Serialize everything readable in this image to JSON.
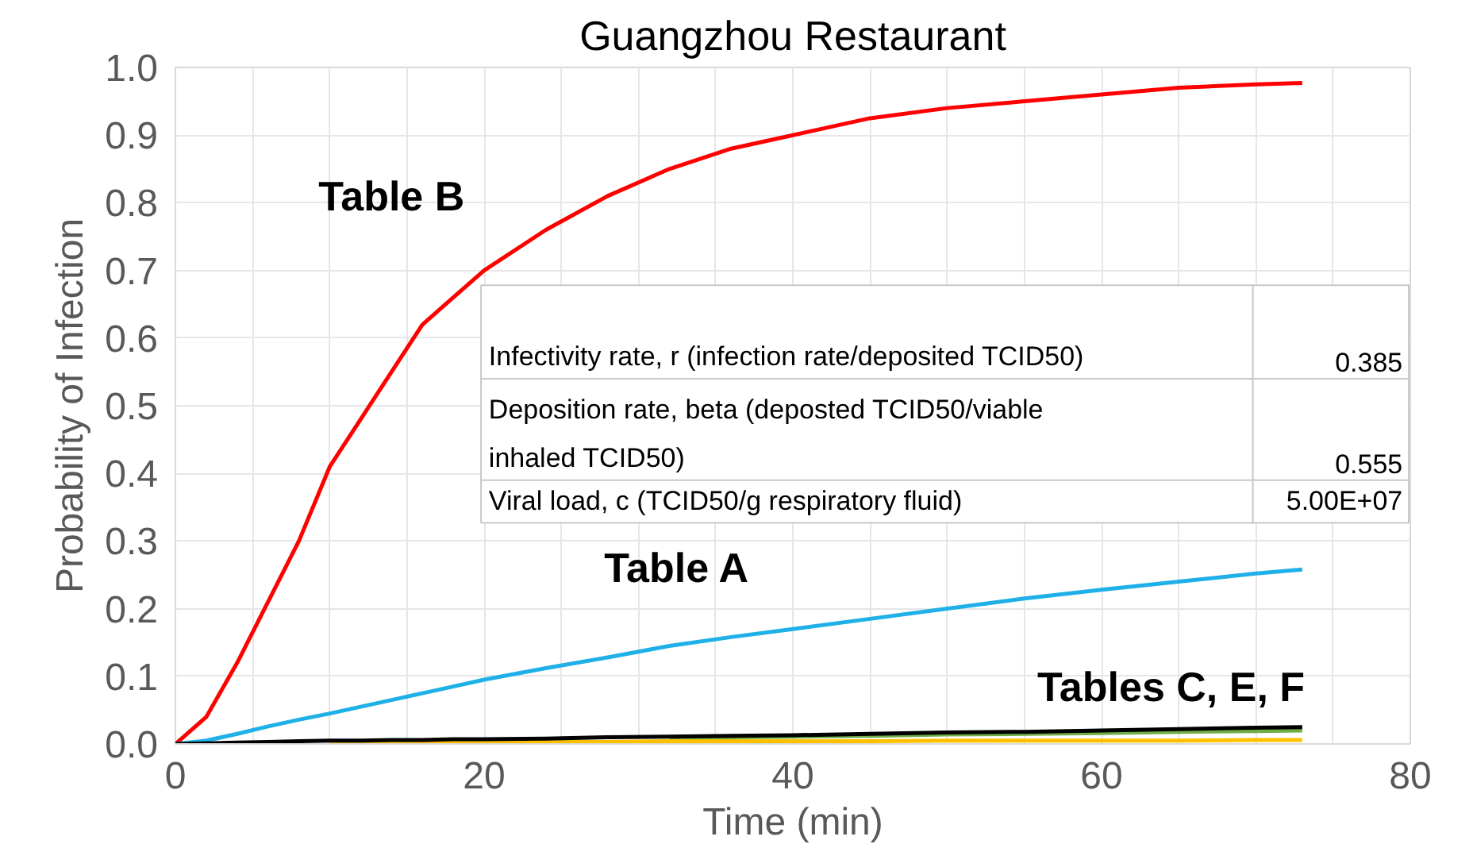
{
  "chart_data": {
    "type": "line",
    "title": "Guangzhou Restaurant",
    "xlabel": "Time (min)",
    "ylabel": "Probability of Infection",
    "x": [
      0,
      2,
      4,
      6,
      8,
      10,
      12,
      14,
      16,
      18,
      20,
      24,
      28,
      32,
      36,
      40,
      45,
      50,
      55,
      60,
      65,
      70,
      73
    ],
    "series": [
      {
        "color": "#ff0000",
        "values": [
          0,
          0.04,
          0.12,
          0.21,
          0.3,
          0.41,
          0.48,
          0.55,
          0.62,
          0.66,
          0.7,
          0.76,
          0.81,
          0.85,
          0.88,
          0.9,
          0.925,
          0.94,
          0.95,
          0.96,
          0.97,
          0.975,
          0.977
        ]
      },
      {
        "color": "#1fb0e8",
        "values": [
          0,
          0.005,
          0.015,
          0.026,
          0.036,
          0.045,
          0.055,
          0.065,
          0.075,
          0.085,
          0.095,
          0.112,
          0.128,
          0.145,
          0.158,
          0.17,
          0.185,
          0.2,
          0.215,
          0.228,
          0.24,
          0.252,
          0.258
        ]
      },
      {
        "color": "#70ad47",
        "x": [
          32,
          36,
          40,
          45,
          50,
          55,
          60,
          65,
          70,
          73
        ],
        "values": [
          0.009,
          0.01,
          0.011,
          0.012,
          0.014,
          0.015,
          0.016,
          0.018,
          0.019,
          0.02
        ]
      },
      {
        "color": "#ffc000",
        "x": [
          10,
          12,
          14,
          16,
          18,
          20,
          24,
          28,
          32,
          36,
          40,
          45,
          50,
          55,
          60,
          65,
          70,
          73
        ],
        "values": [
          0.002,
          0.002,
          0.002,
          0.003,
          0.003,
          0.003,
          0.003,
          0.003,
          0.004,
          0.004,
          0.004,
          0.004,
          0.005,
          0.005,
          0.005,
          0.005,
          0.006,
          0.006
        ]
      },
      {
        "color": "#000000",
        "values": [
          0,
          0.001,
          0.002,
          0.003,
          0.004,
          0.005,
          0.005,
          0.006,
          0.006,
          0.007,
          0.007,
          0.008,
          0.01,
          0.011,
          0.012,
          0.013,
          0.015,
          0.017,
          0.018,
          0.02,
          0.022,
          0.024,
          0.025
        ]
      }
    ],
    "xlim": [
      0,
      80
    ],
    "ylim": [
      0,
      1
    ],
    "xticks": [
      0,
      {
        "value": 5,
        "label": null
      },
      {
        "value": 10,
        "label": null
      },
      {
        "value": 15,
        "label": null
      },
      20,
      {
        "value": 25,
        "label": null
      },
      {
        "value": 30,
        "label": null
      },
      {
        "value": 35,
        "label": null
      },
      40,
      {
        "value": 45,
        "label": null
      },
      {
        "value": 50,
        "label": null
      },
      {
        "value": 55,
        "label": null
      },
      60,
      {
        "value": 65,
        "label": null
      },
      {
        "value": 70,
        "label": null
      },
      {
        "value": 75,
        "label": null
      },
      80
    ],
    "yticks": [
      {
        "value": 0,
        "label": "0.0"
      },
      0.1,
      0.2,
      0.3,
      0.4,
      0.5,
      0.6,
      0.7,
      0.8,
      0.9,
      {
        "value": 1,
        "label": "1.0"
      }
    ],
    "grid": true,
    "marker": "none",
    "line_style": "solid",
    "annotations": [
      "Table B",
      "Table A",
      "Tables C, E, F",
      "Infectivity rate, r (infection rate/deposited TCID50)",
      "0.385",
      "Deposition rate, beta (deposted TCID50/viable\ninhaled TCID50)",
      "0.555",
      "Viral load, c (TCID50/g respiratory fluid)",
      "5.00E+07"
    ]
  }
}
